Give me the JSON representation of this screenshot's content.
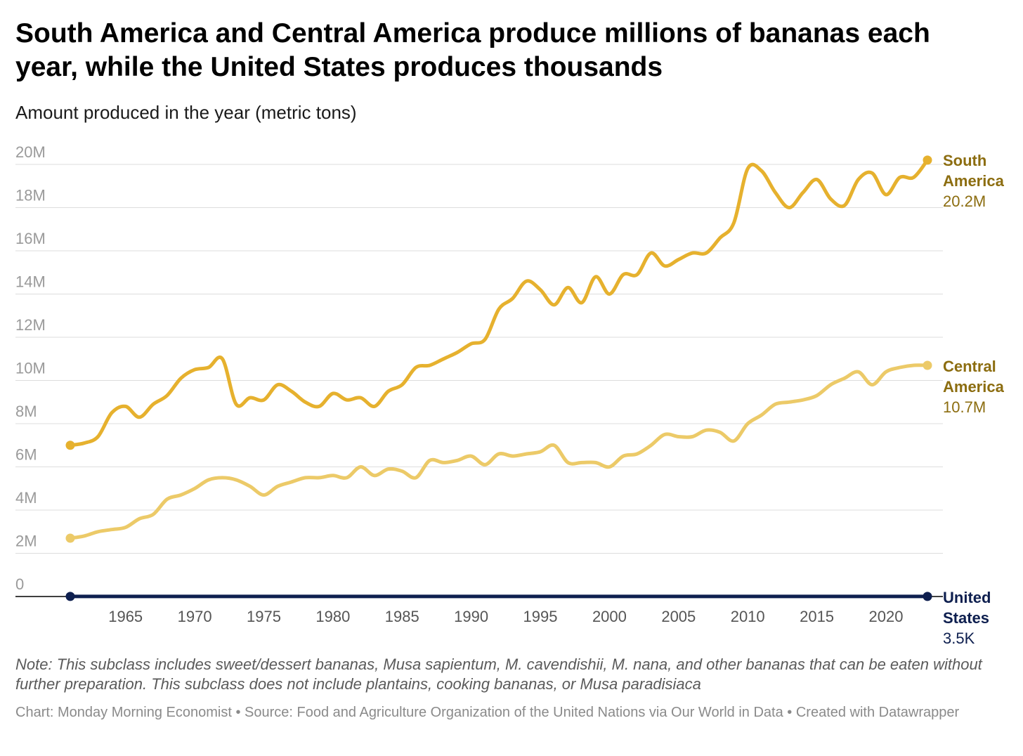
{
  "title": "South America and Central America produce millions of bananas each year, while the United States produces thousands",
  "subtitle": "Amount produced in the year (metric tons)",
  "note": "Note: This subclass includes sweet/dessert bananas, Musa sapientum, M. cavendishii, M. nana, and other bananas that can be eaten without further preparation. This subclass does not include plantains, cooking bananas, or Musa paradisiaca",
  "credit": "Chart: Monday Morning Economist • Source: Food and Agriculture Organization of the United Nations via Our World in Data • Created with Datawrapper",
  "chart_data": {
    "type": "line",
    "title": "South America and Central America produce millions of bananas each year, while the United States produces thousands",
    "ylabel": "Amount produced in the year (metric tons)",
    "xlim": [
      1961,
      2023
    ],
    "ylim": [
      0,
      20000000
    ],
    "yticks": [
      0,
      2000000,
      4000000,
      6000000,
      8000000,
      10000000,
      12000000,
      14000000,
      16000000,
      18000000,
      20000000
    ],
    "ytick_labels": [
      "0",
      "2M",
      "4M",
      "6M",
      "8M",
      "10M",
      "12M",
      "14M",
      "16M",
      "18M",
      "20M"
    ],
    "xticks": [
      1965,
      1970,
      1975,
      1980,
      1985,
      1990,
      1995,
      2000,
      2005,
      2010,
      2015,
      2020
    ],
    "grid": true,
    "x": [
      1961,
      1962,
      1963,
      1964,
      1965,
      1966,
      1967,
      1968,
      1969,
      1970,
      1971,
      1972,
      1973,
      1974,
      1975,
      1976,
      1977,
      1978,
      1979,
      1980,
      1981,
      1982,
      1983,
      1984,
      1985,
      1986,
      1987,
      1988,
      1989,
      1990,
      1991,
      1992,
      1993,
      1994,
      1995,
      1996,
      1997,
      1998,
      1999,
      2000,
      2001,
      2002,
      2003,
      2004,
      2005,
      2006,
      2007,
      2008,
      2009,
      2010,
      2011,
      2012,
      2013,
      2014,
      2015,
      2016,
      2017,
      2018,
      2019,
      2020,
      2021,
      2022,
      2023
    ],
    "series": [
      {
        "name": "South America",
        "label_line1": "South",
        "label_line2": "America",
        "value_label": "20.2M",
        "color": "#e6b12e",
        "label_color": "#8c6d10",
        "values": [
          7000000,
          7100000,
          7400000,
          8500000,
          8800000,
          8300000,
          8900000,
          9300000,
          10100000,
          10500000,
          10600000,
          11000000,
          8900000,
          9200000,
          9100000,
          9800000,
          9500000,
          9000000,
          8800000,
          9400000,
          9100000,
          9200000,
          8800000,
          9500000,
          9800000,
          10600000,
          10700000,
          11000000,
          11300000,
          11700000,
          11900000,
          13300000,
          13800000,
          14600000,
          14200000,
          13500000,
          14300000,
          13600000,
          14800000,
          14000000,
          14900000,
          14900000,
          15900000,
          15300000,
          15600000,
          15900000,
          15900000,
          16600000,
          17300000,
          19800000,
          19700000,
          18700000,
          18000000,
          18700000,
          19300000,
          18400000,
          18100000,
          19300000,
          19600000,
          18600000,
          19400000,
          19400000,
          20200000
        ]
      },
      {
        "name": "Central America",
        "label_line1": "Central",
        "label_line2": "America",
        "value_label": "10.7M",
        "color": "#ecca68",
        "label_color": "#8c6d10",
        "values": [
          2700000,
          2800000,
          3000000,
          3100000,
          3200000,
          3600000,
          3800000,
          4500000,
          4700000,
          5000000,
          5400000,
          5500000,
          5400000,
          5100000,
          4700000,
          5100000,
          5300000,
          5500000,
          5500000,
          5600000,
          5500000,
          6000000,
          5600000,
          5900000,
          5800000,
          5500000,
          6300000,
          6200000,
          6300000,
          6500000,
          6100000,
          6600000,
          6500000,
          6600000,
          6700000,
          7000000,
          6200000,
          6200000,
          6200000,
          6000000,
          6500000,
          6600000,
          7000000,
          7500000,
          7400000,
          7400000,
          7700000,
          7600000,
          7200000,
          8000000,
          8400000,
          8900000,
          9000000,
          9100000,
          9300000,
          9800000,
          10100000,
          10400000,
          9800000,
          10400000,
          10600000,
          10700000,
          10700000
        ]
      },
      {
        "name": "United States",
        "label_line1": "United",
        "label_line2": "States",
        "value_label": "3.5K",
        "color": "#0e1f4f",
        "label_color": "#0e1f4f",
        "values": [
          4000,
          4000,
          4000,
          4000,
          4000,
          4000,
          4000,
          4000,
          4000,
          4000,
          4000,
          4000,
          4000,
          4000,
          4000,
          4000,
          4000,
          4000,
          4000,
          4000,
          4000,
          4000,
          4000,
          4000,
          4000,
          4000,
          4000,
          4000,
          4000,
          4000,
          4000,
          4000,
          4000,
          4000,
          4000,
          4000,
          4000,
          4000,
          4000,
          4000,
          4000,
          4000,
          4000,
          4000,
          4000,
          4000,
          4000,
          4000,
          4000,
          4000,
          4000,
          4000,
          4000,
          4000,
          4000,
          4000,
          4000,
          4000,
          4000,
          4000,
          4000,
          3500,
          3500
        ]
      }
    ]
  }
}
